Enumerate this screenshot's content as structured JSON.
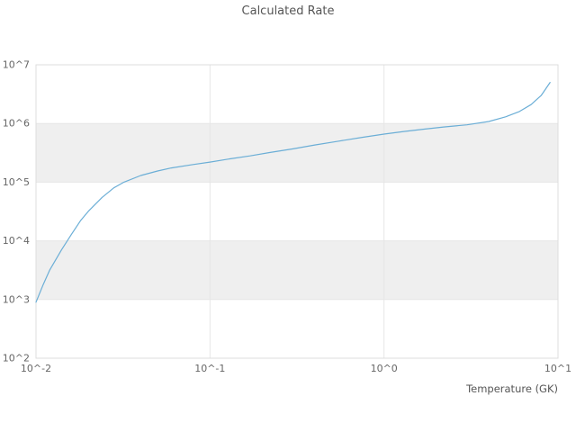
{
  "chart_data": {
    "type": "line",
    "title": "Calculated Rate",
    "xlabel": "Temperature (GK)",
    "ylabel": "",
    "x_scale": "log",
    "y_scale": "log",
    "xlim": [
      0.01,
      10
    ],
    "ylim": [
      100,
      10000000
    ],
    "x_tick_values": [
      0.01,
      0.1,
      1,
      10
    ],
    "x_tick_labels": [
      "10^-2",
      "10^-1",
      "10^0",
      "10^1"
    ],
    "y_tick_values": [
      100,
      1000,
      10000,
      100000,
      1000000,
      10000000
    ],
    "y_tick_labels": [
      "10^2",
      "10^3",
      "10^4",
      "10^5",
      "10^6",
      "10^7"
    ],
    "bands": [
      [
        1000,
        10000
      ],
      [
        100000,
        1000000
      ]
    ],
    "grid": true,
    "legend": false,
    "colors": {
      "line": "#6baed6",
      "band": "#efefef",
      "grid": "#e6e6e6",
      "frame": "#dddddd",
      "title_text": "#555555",
      "tick_text": "#666666"
    },
    "series": [
      {
        "name": "calculated-rate",
        "x": [
          0.01,
          0.011,
          0.012,
          0.014,
          0.016,
          0.018,
          0.02,
          0.024,
          0.028,
          0.032,
          0.04,
          0.05,
          0.06,
          0.08,
          0.1,
          0.13,
          0.17,
          0.22,
          0.3,
          0.4,
          0.55,
          0.75,
          1.0,
          1.3,
          1.7,
          2.2,
          3.0,
          4.0,
          5.0,
          6.0,
          7.0,
          8.0,
          9.0
        ],
        "y": [
          900,
          1800,
          3200,
          7000,
          13000,
          22000,
          32000,
          55000,
          80000,
          100000,
          130000,
          155000,
          175000,
          200000,
          220000,
          250000,
          280000,
          320000,
          370000,
          430000,
          500000,
          580000,
          660000,
          730000,
          800000,
          870000,
          950000,
          1080000,
          1300000,
          1600000,
          2100000,
          3000000,
          5000000
        ]
      }
    ]
  }
}
